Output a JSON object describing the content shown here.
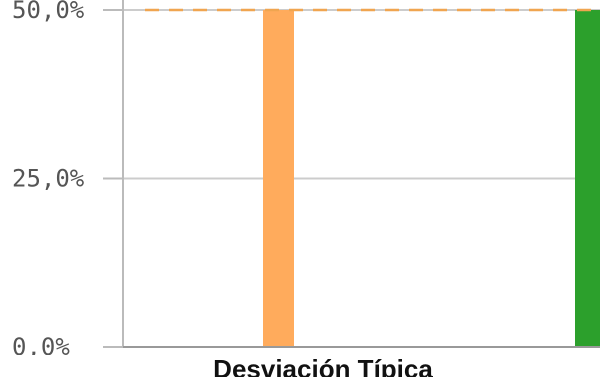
{
  "chart_data": {
    "type": "bar",
    "title": "",
    "xlabel": "Desviación Típica",
    "ylabel": "",
    "ylim": [
      0,
      50
    ],
    "yticks": [
      {
        "value": 0,
        "label": "0,0%"
      },
      {
        "value": 25,
        "label": "25,0%"
      },
      {
        "value": 50,
        "label": "50,0%"
      }
    ],
    "grid": true,
    "series": [
      {
        "values": [
          50
        ],
        "color": "#FFAB5C"
      },
      {
        "values": [
          50
        ],
        "color": "#2CA02C"
      }
    ],
    "reference_line": {
      "value": 50,
      "color": "#F0A550",
      "style": "dashed"
    }
  }
}
